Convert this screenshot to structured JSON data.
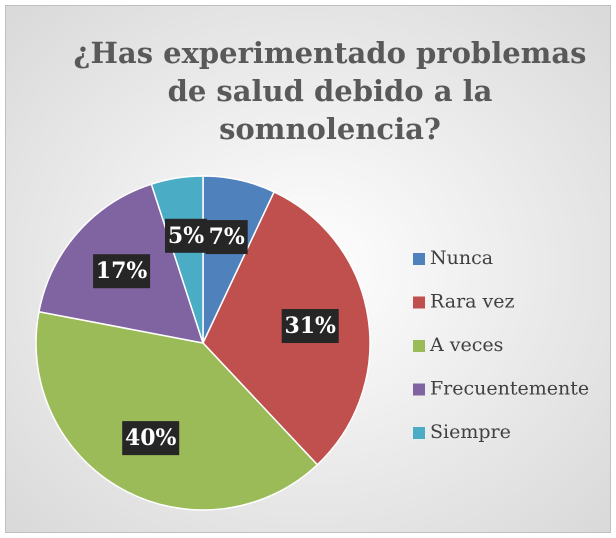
{
  "chart_data": {
    "type": "pie",
    "title": [
      "¿Has experimentado problemas",
      "de salud debido a la",
      "somnolencia?"
    ],
    "categories": [
      "Nunca",
      "Rara vez",
      "A veces",
      "Frecuentemente",
      "Siempre"
    ],
    "values": [
      7,
      31,
      40,
      17,
      5
    ],
    "value_labels": [
      "7%",
      "31%",
      "40%",
      "17%",
      "5%"
    ],
    "colors": [
      "#4f81bd",
      "#c0504d",
      "#9bbb59",
      "#8064a2",
      "#4bacc6"
    ],
    "legend": "right"
  }
}
